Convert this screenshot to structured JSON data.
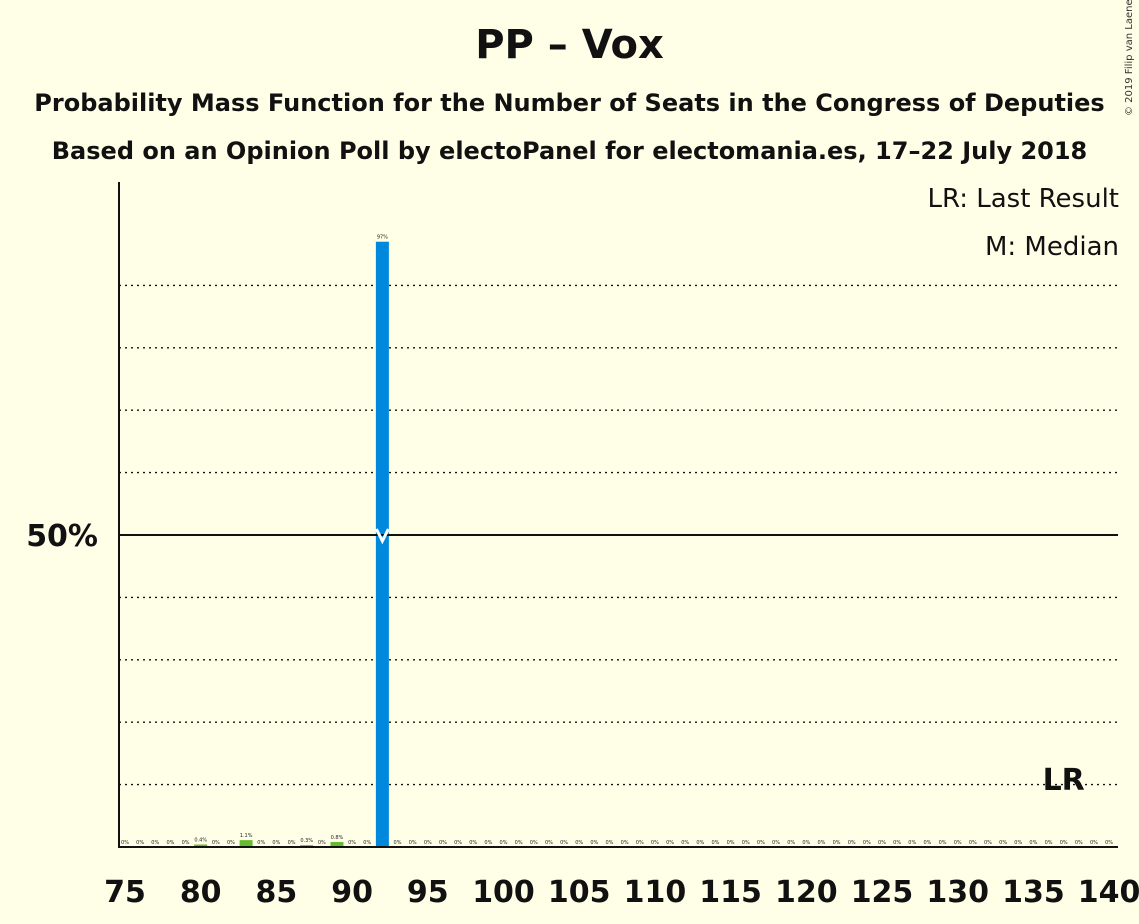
{
  "title": "PP – Vox",
  "subtitle": "Probability Mass Function for the Number of Seats in the Congress of Deputies",
  "subtitle2": "Based on an Opinion Poll by electoPanel for electomania.es, 17–22 July 2018",
  "legend": {
    "lr": "LR: Last Result",
    "m": "M: Median"
  },
  "copyright": "© 2019 Filip van Laenen",
  "colors": {
    "primary": "#0088DD",
    "secondary": "#66BB33",
    "background": "#FFFEE6",
    "axis": "#111111"
  },
  "chart_data": {
    "type": "bar",
    "x_min": 75,
    "x_max": 140,
    "x_ticks": [
      75,
      80,
      85,
      90,
      95,
      100,
      105,
      110,
      115,
      120,
      125,
      130,
      135,
      140
    ],
    "y_ticks": [
      {
        "value": 50,
        "label": "50%"
      }
    ],
    "gridlines": [
      10,
      20,
      30,
      40,
      60,
      70,
      80,
      90
    ],
    "ylim": [
      0,
      106
    ],
    "median": 92,
    "median_value": 50,
    "last_result": 137,
    "last_result_label": "LR",
    "bars": [
      {
        "x": 75,
        "value": 0,
        "label": "0%"
      },
      {
        "x": 76,
        "value": 0,
        "label": "0%"
      },
      {
        "x": 77,
        "value": 0,
        "label": "0%"
      },
      {
        "x": 78,
        "value": 0,
        "label": "0%"
      },
      {
        "x": 79,
        "value": 0,
        "label": "0%"
      },
      {
        "x": 80,
        "value": 0.4,
        "label": "0.4%"
      },
      {
        "x": 81,
        "value": 0,
        "label": "0%"
      },
      {
        "x": 82,
        "value": 0,
        "label": "0%"
      },
      {
        "x": 83,
        "value": 1.1,
        "label": "1.1%"
      },
      {
        "x": 84,
        "value": 0,
        "label": "0%"
      },
      {
        "x": 85,
        "value": 0,
        "label": "0%"
      },
      {
        "x": 86,
        "value": 0,
        "label": "0%"
      },
      {
        "x": 87,
        "value": 0.3,
        "label": "0.3%"
      },
      {
        "x": 88,
        "value": 0,
        "label": "0%"
      },
      {
        "x": 89,
        "value": 0.8,
        "label": "0.8%"
      },
      {
        "x": 90,
        "value": 0,
        "label": "0%"
      },
      {
        "x": 91,
        "value": 0,
        "label": "0%"
      },
      {
        "x": 92,
        "value": 97,
        "label": "97%"
      },
      {
        "x": 93,
        "value": 0,
        "label": "0%"
      },
      {
        "x": 94,
        "value": 0,
        "label": "0%"
      },
      {
        "x": 95,
        "value": 0,
        "label": "0%"
      },
      {
        "x": 96,
        "value": 0,
        "label": "0%"
      },
      {
        "x": 97,
        "value": 0,
        "label": "0%"
      },
      {
        "x": 98,
        "value": 0,
        "label": "0%"
      },
      {
        "x": 99,
        "value": 0,
        "label": "0%"
      },
      {
        "x": 100,
        "value": 0,
        "label": "0%"
      },
      {
        "x": 101,
        "value": 0,
        "label": "0%"
      },
      {
        "x": 102,
        "value": 0,
        "label": "0%"
      },
      {
        "x": 103,
        "value": 0,
        "label": "0%"
      },
      {
        "x": 104,
        "value": 0,
        "label": "0%"
      },
      {
        "x": 105,
        "value": 0,
        "label": "0%"
      },
      {
        "x": 106,
        "value": 0,
        "label": "0%"
      },
      {
        "x": 107,
        "value": 0,
        "label": "0%"
      },
      {
        "x": 108,
        "value": 0,
        "label": "0%"
      },
      {
        "x": 109,
        "value": 0,
        "label": "0%"
      },
      {
        "x": 110,
        "value": 0,
        "label": "0%"
      },
      {
        "x": 111,
        "value": 0,
        "label": "0%"
      },
      {
        "x": 112,
        "value": 0,
        "label": "0%"
      },
      {
        "x": 113,
        "value": 0,
        "label": "0%"
      },
      {
        "x": 114,
        "value": 0,
        "label": "0%"
      },
      {
        "x": 115,
        "value": 0,
        "label": "0%"
      },
      {
        "x": 116,
        "value": 0,
        "label": "0%"
      },
      {
        "x": 117,
        "value": 0,
        "label": "0%"
      },
      {
        "x": 118,
        "value": 0,
        "label": "0%"
      },
      {
        "x": 119,
        "value": 0,
        "label": "0%"
      },
      {
        "x": 120,
        "value": 0,
        "label": "0%"
      },
      {
        "x": 121,
        "value": 0,
        "label": "0%"
      },
      {
        "x": 122,
        "value": 0,
        "label": "0%"
      },
      {
        "x": 123,
        "value": 0,
        "label": "0%"
      },
      {
        "x": 124,
        "value": 0,
        "label": "0%"
      },
      {
        "x": 125,
        "value": 0,
        "label": "0%"
      },
      {
        "x": 126,
        "value": 0,
        "label": "0%"
      },
      {
        "x": 127,
        "value": 0,
        "label": "0%"
      },
      {
        "x": 128,
        "value": 0,
        "label": "0%"
      },
      {
        "x": 129,
        "value": 0,
        "label": "0%"
      },
      {
        "x": 130,
        "value": 0,
        "label": "0%"
      },
      {
        "x": 131,
        "value": 0,
        "label": "0%"
      },
      {
        "x": 132,
        "value": 0,
        "label": "0%"
      },
      {
        "x": 133,
        "value": 0,
        "label": "0%"
      },
      {
        "x": 134,
        "value": 0,
        "label": "0%"
      },
      {
        "x": 135,
        "value": 0,
        "label": "0%"
      },
      {
        "x": 136,
        "value": 0,
        "label": "0%"
      },
      {
        "x": 137,
        "value": 0,
        "label": "0%"
      },
      {
        "x": 138,
        "value": 0,
        "label": "0%"
      },
      {
        "x": 139,
        "value": 0,
        "label": "0%"
      },
      {
        "x": 140,
        "value": 0,
        "label": "0%"
      }
    ]
  }
}
